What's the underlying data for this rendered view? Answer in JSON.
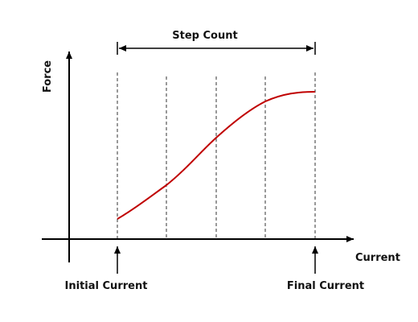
{
  "diagram": {
    "y_axis_label": "Force",
    "x_axis_label": "Current",
    "span_label": "Step Count",
    "start_marker_label": "Initial Current",
    "end_marker_label": "Final Current",
    "step_divisions": 4,
    "colors": {
      "curve": "#c00000",
      "axes": "#000000",
      "dashes": "#333333",
      "text": "#111111"
    }
  }
}
